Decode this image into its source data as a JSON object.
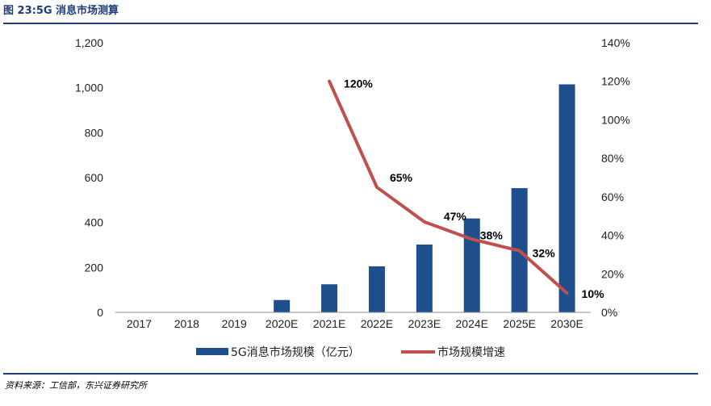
{
  "figure": {
    "title": "图 23:5G 消息市场测算",
    "source": "资料来源：工信部，东兴证券研究所"
  },
  "colors": {
    "bar": "#1f4e8c",
    "line": "#c0504d",
    "rule": "#1f3d7a"
  },
  "chart_data": {
    "type": "bar",
    "title": "",
    "categories": [
      "2017",
      "2018",
      "2019",
      "2020E",
      "2021E",
      "2022E",
      "2023E",
      "2024E",
      "2025E",
      "2030E"
    ],
    "series": [
      {
        "name": "5G消息市场规模（亿元）",
        "type": "bar",
        "axis": "left",
        "values": [
          0,
          0,
          0,
          55,
          125,
          205,
          302,
          418,
          553,
          1015
        ]
      },
      {
        "name": "市场规模增速",
        "type": "line",
        "axis": "right",
        "values": [
          null,
          null,
          null,
          null,
          1.2,
          0.65,
          0.47,
          0.38,
          0.32,
          0.1
        ],
        "labels": [
          "",
          "",
          "",
          "",
          "120%",
          "65%",
          "47%",
          "38%",
          "32%",
          "10%"
        ]
      }
    ],
    "y_left": {
      "range": [
        0,
        1200
      ],
      "ticks": [
        "0",
        "200",
        "400",
        "600",
        "800",
        "1,000",
        "1,200"
      ]
    },
    "y_right": {
      "range": [
        0,
        1.4
      ],
      "ticks": [
        "0%",
        "20%",
        "40%",
        "60%",
        "80%",
        "100%",
        "120%",
        "140%"
      ]
    },
    "grid": false,
    "legend_position": "bottom"
  }
}
